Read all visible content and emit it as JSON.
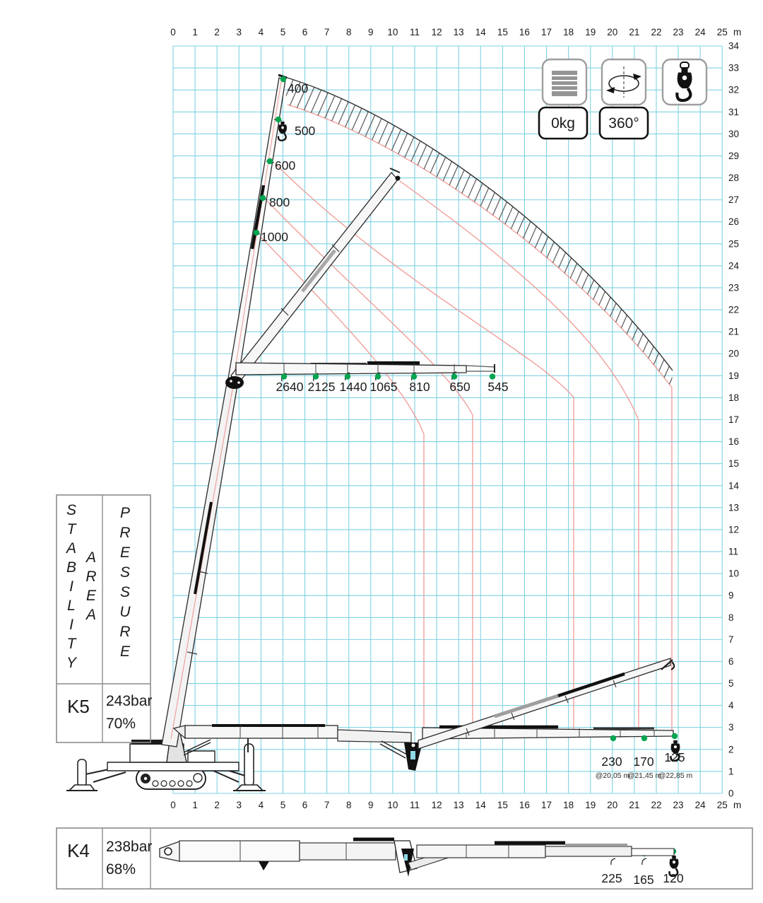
{
  "axes": {
    "x_ticks": [
      "0",
      "1",
      "2",
      "3",
      "4",
      "5",
      "6",
      "7",
      "8",
      "9",
      "10",
      "11",
      "12",
      "13",
      "14",
      "15",
      "16",
      "17",
      "18",
      "19",
      "20",
      "21",
      "22",
      "23",
      "24",
      "25"
    ],
    "y_ticks": [
      "0",
      "1",
      "2",
      "3",
      "4",
      "5",
      "6",
      "7",
      "8",
      "9",
      "10",
      "11",
      "12",
      "13",
      "14",
      "15",
      "16",
      "17",
      "18",
      "19",
      "20",
      "21",
      "22",
      "23",
      "24",
      "25",
      "26",
      "27",
      "28",
      "29",
      "30",
      "31",
      "32",
      "33",
      "34"
    ],
    "unit": "m"
  },
  "badges": {
    "counterweight": "0kg",
    "slew": "360°"
  },
  "icons": [
    "counterweight-icon",
    "slew-rotation-icon",
    "hook-icon"
  ],
  "loads": {
    "boom_vertical": [
      "400",
      "500",
      "600",
      "800",
      "1000"
    ],
    "boom_horizontal_19m": [
      "2640",
      "2125",
      "1440",
      "1065",
      "810",
      "650",
      "545"
    ],
    "boom_low": [
      {
        "load": "230",
        "reach": "@20,05 m"
      },
      {
        "load": "170",
        "reach": "@21,45 m"
      },
      {
        "load": "125",
        "reach": "@22,85 m"
      }
    ],
    "boom_k4": [
      "225",
      "165",
      "120"
    ]
  },
  "side_table": {
    "header_col1": "STABILITY",
    "header_col1b": "AREA",
    "header_col2": "PRESSURE",
    "rows": [
      {
        "config": "K5",
        "pressure": "243bar",
        "stability": "70%"
      },
      {
        "config": "K4",
        "pressure": "238bar",
        "stability": "68%"
      }
    ]
  },
  "colors": {
    "grid": "#7fd2e2",
    "curve": "#f09a95",
    "marker": "#00a44f",
    "hatch": "#4d4d4d",
    "border": "#8c8c8c"
  }
}
